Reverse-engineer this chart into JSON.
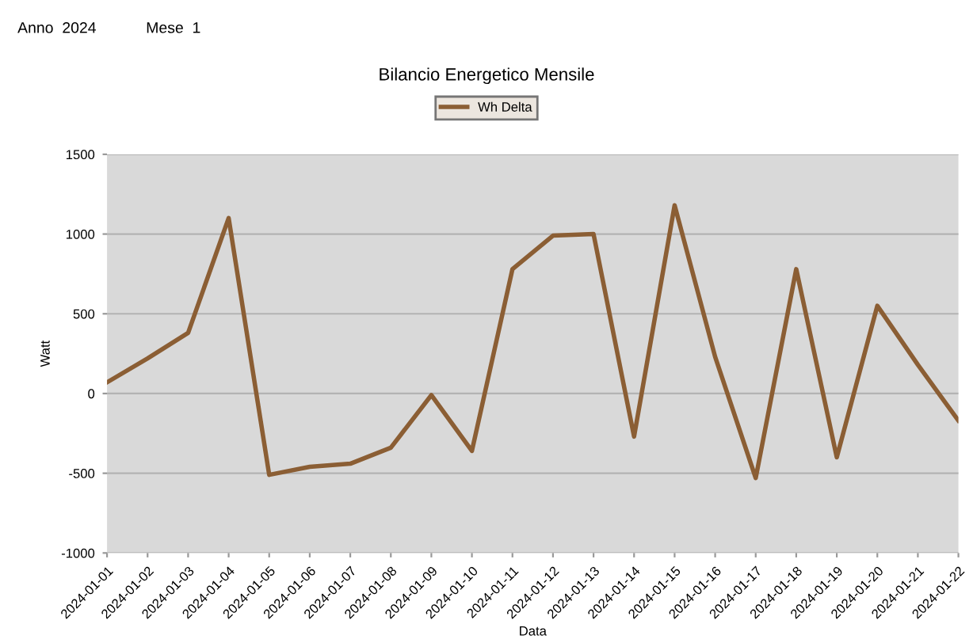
{
  "chart_data": {
    "type": "line",
    "title": "Bilancio Energetico Mensile",
    "xlabel": "Data",
    "ylabel": "Watt",
    "annotations": [
      "Anno  2024",
      "Mese  1"
    ],
    "categories": [
      "2024-01-01",
      "2024-01-02",
      "2024-01-03",
      "2024-01-04",
      "2024-01-05",
      "2024-01-06",
      "2024-01-07",
      "2024-01-08",
      "2024-01-09",
      "2024-01-10",
      "2024-01-11",
      "2024-01-12",
      "2024-01-13",
      "2024-01-14",
      "2024-01-15",
      "2024-01-16",
      "2024-01-17",
      "2024-01-18",
      "2024-01-19",
      "2024-01-20",
      "2024-01-21",
      "2024-01-22"
    ],
    "series": [
      {
        "name": "Wh Delta",
        "color": "#8b5e34",
        "values": [
          70,
          220,
          380,
          1100,
          -510,
          -460,
          -440,
          -340,
          -10,
          -360,
          780,
          990,
          1000,
          -270,
          1180,
          230,
          -530,
          780,
          -400,
          550,
          180,
          -170
        ]
      }
    ],
    "ylim": [
      -1000,
      1500
    ],
    "yticks": [
      -1000,
      -500,
      0,
      500,
      1000,
      1500
    ],
    "grid": "y",
    "legend": "top",
    "marker": "none",
    "line_style": "solid"
  }
}
